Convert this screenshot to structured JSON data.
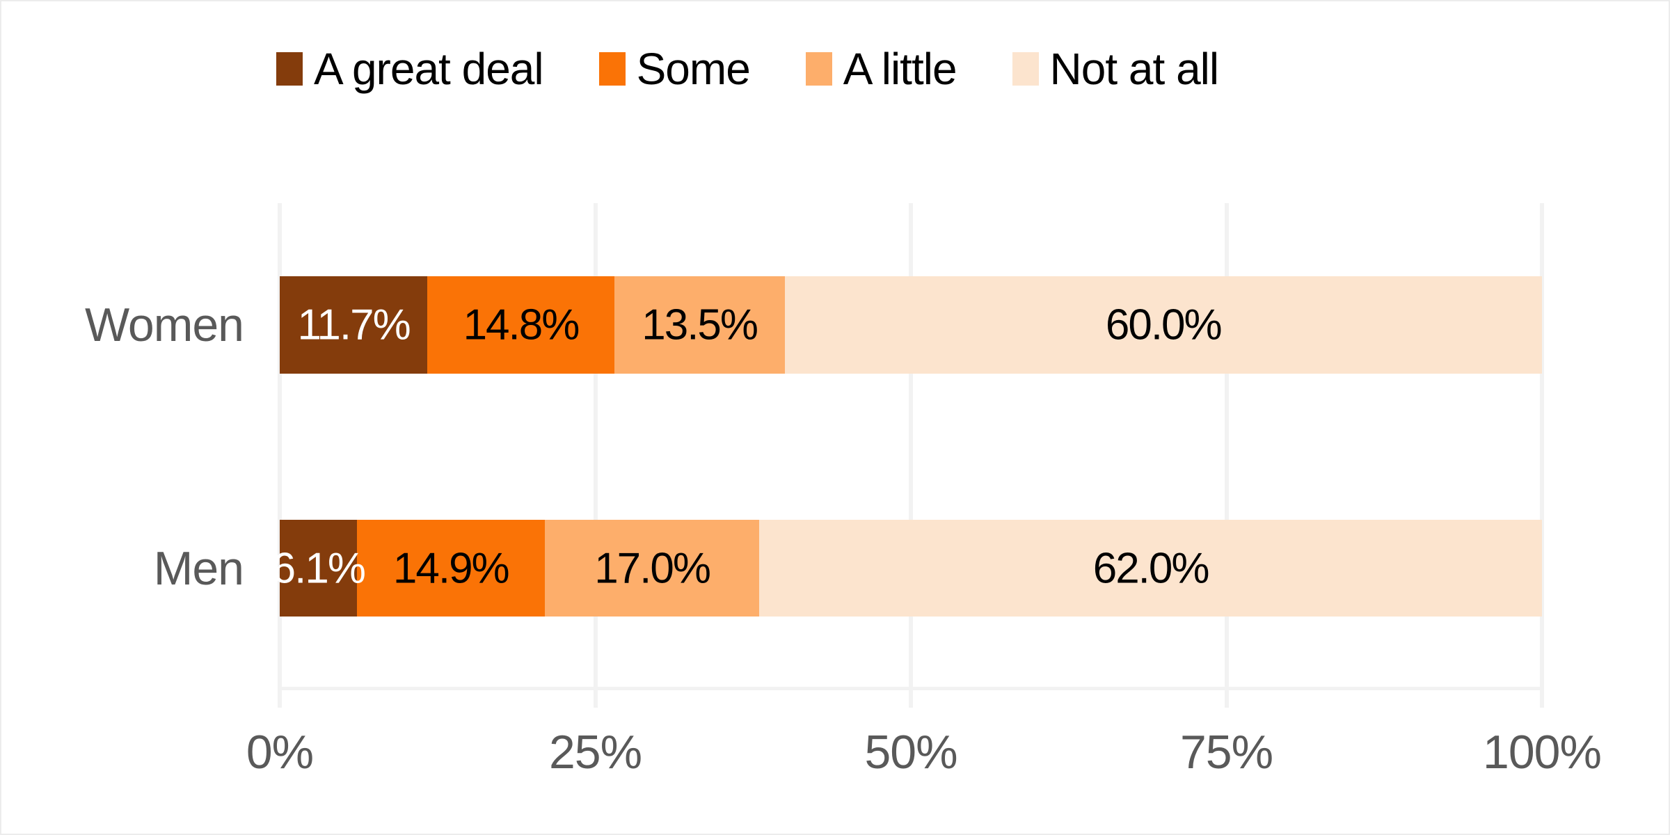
{
  "colors": {
    "a_great_deal": "#843C0C",
    "some": "#FA7306",
    "a_little": "#FDAE6B",
    "not_at_all": "#FCE4CE",
    "gridline": "#F2F2F2",
    "axis_text": "#595959",
    "label_on_dark": "#FFFFFF",
    "label_on_light": "#000000"
  },
  "legend": {
    "items": [
      {
        "label": "A great deal",
        "color": "#843C0C"
      },
      {
        "label": "Some",
        "color": "#FA7306"
      },
      {
        "label": "A little",
        "color": "#FDAE6B"
      },
      {
        "label": "Not at all",
        "color": "#FCE4CE"
      }
    ]
  },
  "chart_data": {
    "type": "bar",
    "orientation": "horizontal",
    "stacked": true,
    "title": "",
    "xlabel": "",
    "ylabel": "",
    "categories": [
      "Women",
      "Men"
    ],
    "series": [
      {
        "name": "A great deal",
        "color": "#843C0C",
        "label_color": "#FFFFFF",
        "values": [
          11.7,
          6.1
        ]
      },
      {
        "name": "Some",
        "color": "#FA7306",
        "label_color": "#000000",
        "values": [
          14.8,
          14.9
        ]
      },
      {
        "name": "A little",
        "color": "#FDAE6B",
        "label_color": "#000000",
        "values": [
          13.5,
          17.0
        ]
      },
      {
        "name": "Not at all",
        "color": "#FCE4CE",
        "label_color": "#000000",
        "values": [
          60.0,
          62.0
        ]
      }
    ],
    "data_labels": [
      [
        "11.7%",
        "14.8%",
        "13.5%",
        "60.0%"
      ],
      [
        "6.1%",
        "14.9%",
        "17.0%",
        "62.0%"
      ]
    ],
    "x_axis": {
      "range": [
        0,
        100
      ],
      "tick_labels": [
        "0%",
        "25%",
        "50%",
        "75%",
        "100%"
      ],
      "tick_values": [
        0,
        25,
        50,
        75,
        100
      ],
      "grid": true
    },
    "legend_position": "top"
  }
}
